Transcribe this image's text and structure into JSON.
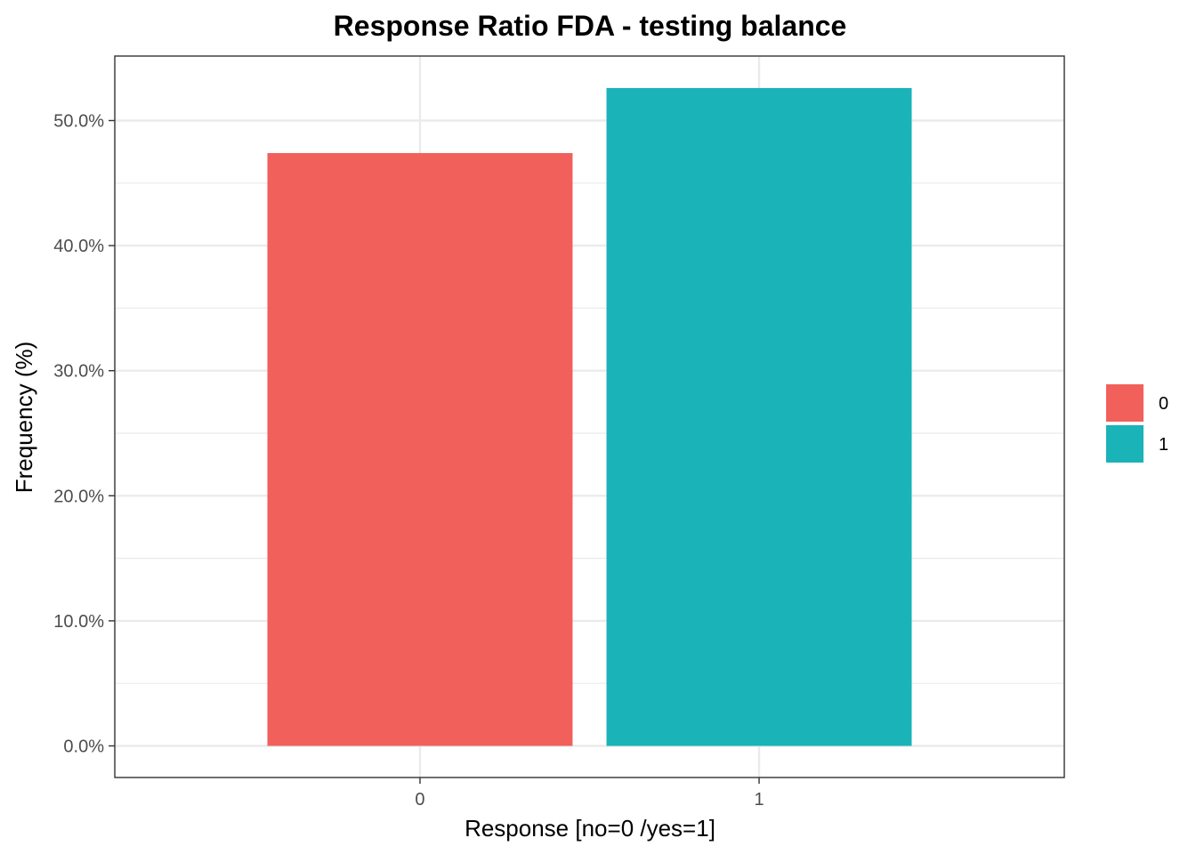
{
  "chart_data": {
    "type": "bar",
    "title": "Response Ratio FDA - testing balance",
    "xlabel": "Response [no=0 /yes=1]",
    "ylabel": "Frequency (%)",
    "categories": [
      "0",
      "1"
    ],
    "values": [
      47.4,
      52.6
    ],
    "ylim": [
      0,
      55
    ],
    "yticks": [
      0,
      10,
      20,
      30,
      40,
      50
    ],
    "ytick_labels": [
      "0.0%",
      "10.0%",
      "20.0%",
      "30.0%",
      "40.0%",
      "50.0%"
    ],
    "colors": [
      "#F2605C",
      "#1AB3B8"
    ],
    "legend": {
      "placement": "right",
      "entries": [
        "0",
        "1"
      ]
    },
    "grid": true
  }
}
